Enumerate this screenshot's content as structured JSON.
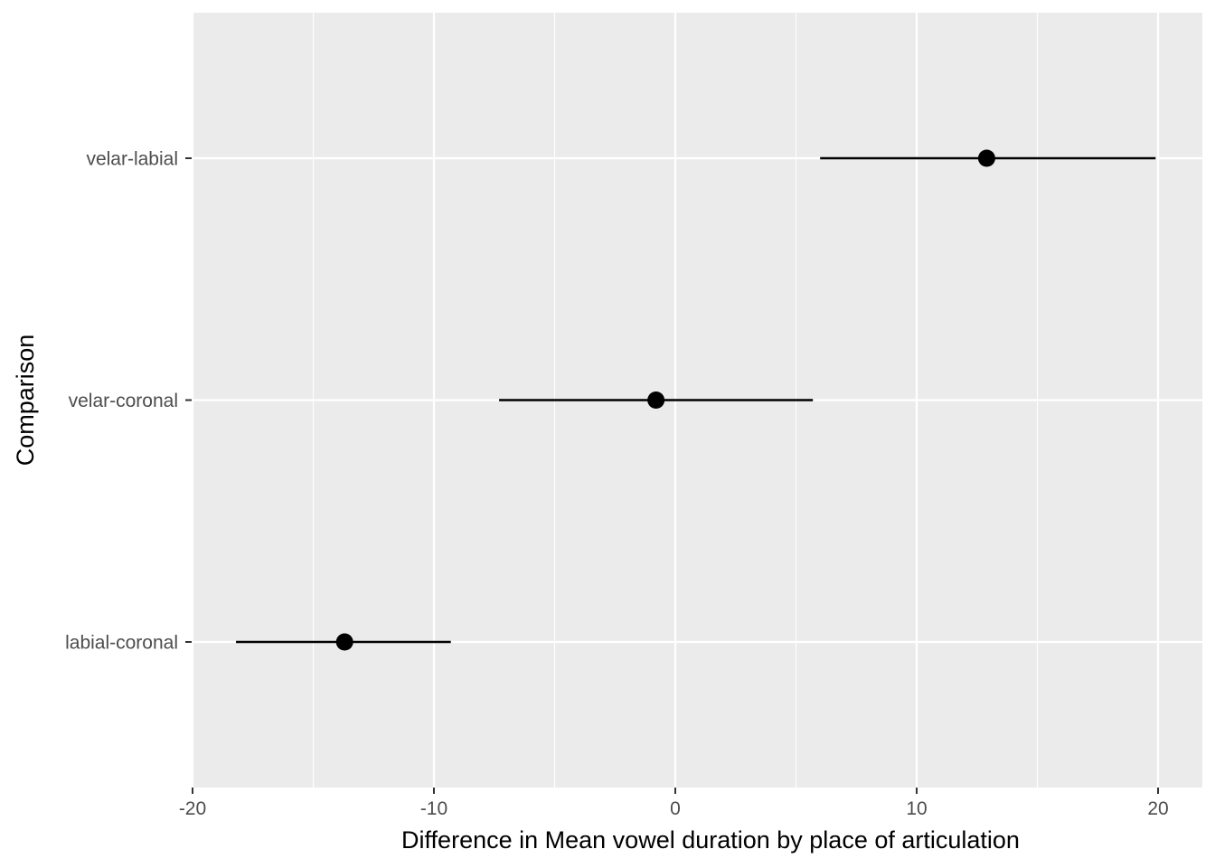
{
  "chart_data": {
    "type": "scatter",
    "subtype": "point-with-interval",
    "title": "",
    "xlabel": "Difference in Mean vowel duration by place of articulation",
    "ylabel": "Comparison",
    "xlim": [
      -20,
      20
    ],
    "x_ticks": [
      -20,
      -10,
      0,
      10,
      20
    ],
    "x_tick_labels": [
      "-20",
      "-10",
      "0",
      "10",
      "20"
    ],
    "x_minor_ticks": [
      -15,
      -5,
      5,
      15
    ],
    "categories": [
      "labial-coronal",
      "velar-coronal",
      "velar-labial"
    ],
    "points": [
      {
        "category": "labial-coronal",
        "estimate": -13.7,
        "lower": -18.2,
        "upper": -9.3
      },
      {
        "category": "velar-coronal",
        "estimate": -0.8,
        "lower": -7.3,
        "upper": 5.7
      },
      {
        "category": "velar-labial",
        "estimate": 12.9,
        "lower": 6.0,
        "upper": 19.9
      }
    ],
    "grid": true,
    "legend": "none",
    "colors": {
      "panel_background": "#ebebeb",
      "grid": "#ffffff",
      "marks": "#000000",
      "tick_text": "#4d4d4d",
      "axis_ticks": "#333333"
    }
  }
}
